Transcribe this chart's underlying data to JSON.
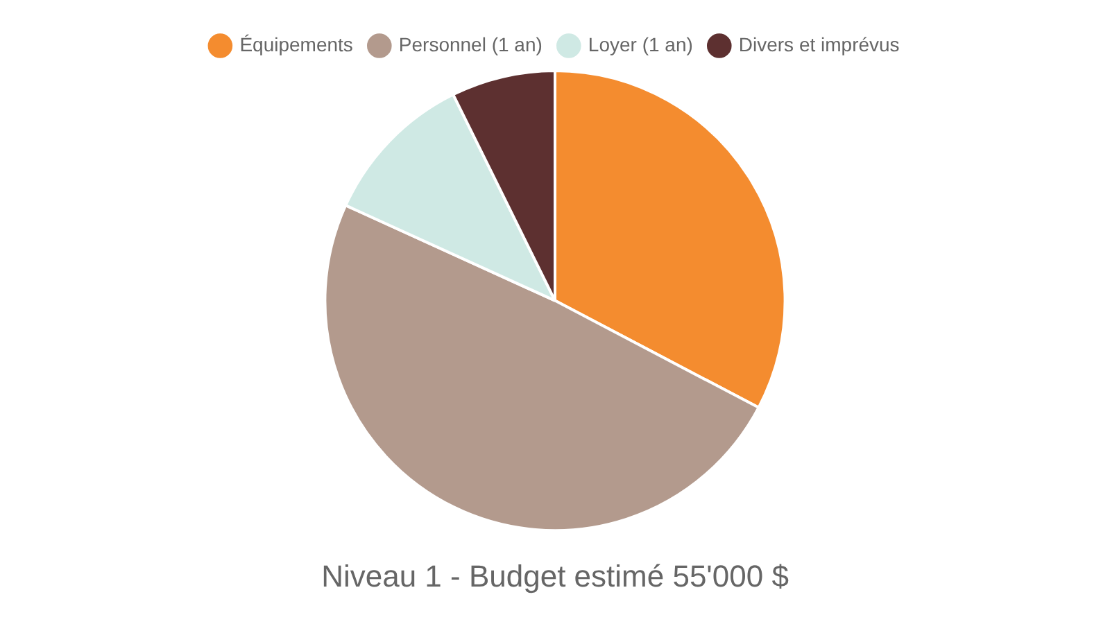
{
  "chart_data": {
    "type": "pie",
    "title": "Niveau 1 - Budget estimé 55'000 $",
    "categories": [
      "Équipements",
      "Personnel (1 an)",
      "Loyer (1 an)",
      "Divers et imprévus"
    ],
    "values": [
      32.7,
      49.1,
      10.9,
      7.3
    ],
    "colors": [
      "#f48c2f",
      "#b39a8d",
      "#cfe9e4",
      "#5d3030"
    ],
    "legend": "top"
  }
}
